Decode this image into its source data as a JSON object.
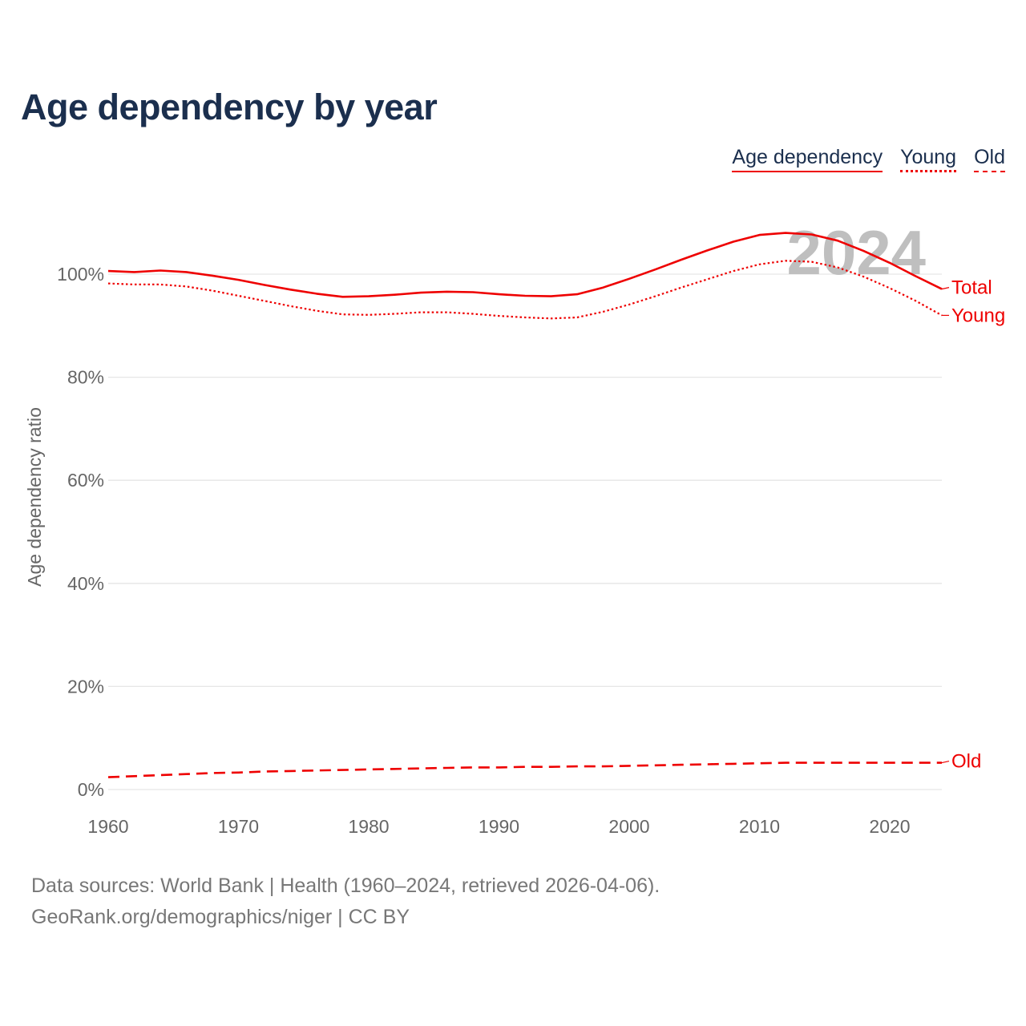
{
  "title": "Age dependency by year",
  "legend": [
    {
      "label": "Age dependency",
      "style": "solid"
    },
    {
      "label": "Young",
      "style": "dotted"
    },
    {
      "label": "Old",
      "style": "dashed"
    }
  ],
  "colors": {
    "series": "#ee0000",
    "title": "#1b2f4e",
    "axis_text": "#666666",
    "grid": "#e6e6e6",
    "watermark": "#bfbfbf"
  },
  "source": {
    "line1": "Data sources: World Bank | Health (1960–2024, retrieved 2026-04-06).",
    "line2": "GeoRank.org/demographics/niger | CC BY"
  },
  "chart_data": {
    "type": "line",
    "title": "Age dependency by year",
    "xlabel": "",
    "ylabel": "Age dependency ratio",
    "xlim": [
      1960,
      2024
    ],
    "ylim": [
      0,
      110
    ],
    "xticks": [
      1960,
      1970,
      1980,
      1990,
      2000,
      2010,
      2020
    ],
    "yticks": [
      0,
      20,
      40,
      60,
      80,
      100
    ],
    "ytick_format": "percent",
    "watermark": "2024",
    "x": [
      1960,
      1962,
      1964,
      1966,
      1968,
      1970,
      1972,
      1974,
      1976,
      1978,
      1980,
      1982,
      1984,
      1986,
      1988,
      1990,
      1992,
      1994,
      1996,
      1998,
      2000,
      2002,
      2004,
      2006,
      2008,
      2010,
      2012,
      2014,
      2016,
      2018,
      2020,
      2022,
      2024
    ],
    "series": [
      {
        "name": "Total",
        "style": "solid",
        "values": [
          100.6,
          100.4,
          100.7,
          100.4,
          99.7,
          98.9,
          97.9,
          97.0,
          96.2,
          95.6,
          95.7,
          96.0,
          96.4,
          96.6,
          96.5,
          96.1,
          95.8,
          95.7,
          96.1,
          97.4,
          99.1,
          100.9,
          102.8,
          104.6,
          106.3,
          107.6,
          108.0,
          107.7,
          106.5,
          104.5,
          102.2,
          99.6,
          97.1
        ]
      },
      {
        "name": "Young",
        "style": "dotted",
        "values": [
          98.2,
          98.0,
          98.0,
          97.6,
          96.8,
          95.8,
          94.8,
          93.8,
          92.9,
          92.2,
          92.1,
          92.3,
          92.6,
          92.6,
          92.3,
          91.9,
          91.6,
          91.4,
          91.6,
          92.7,
          94.1,
          95.7,
          97.4,
          99.0,
          100.6,
          101.9,
          102.6,
          102.4,
          101.3,
          99.5,
          97.3,
          94.8,
          92.0
        ]
      },
      {
        "name": "Old",
        "style": "dashed",
        "values": [
          2.4,
          2.6,
          2.8,
          3.0,
          3.2,
          3.3,
          3.5,
          3.6,
          3.7,
          3.8,
          3.9,
          4.0,
          4.1,
          4.2,
          4.3,
          4.3,
          4.4,
          4.4,
          4.5,
          4.5,
          4.6,
          4.7,
          4.8,
          4.9,
          5.0,
          5.1,
          5.2,
          5.2,
          5.2,
          5.2,
          5.2,
          5.2,
          5.2
        ]
      }
    ],
    "end_labels": [
      "Total",
      "Young",
      "Old"
    ]
  }
}
